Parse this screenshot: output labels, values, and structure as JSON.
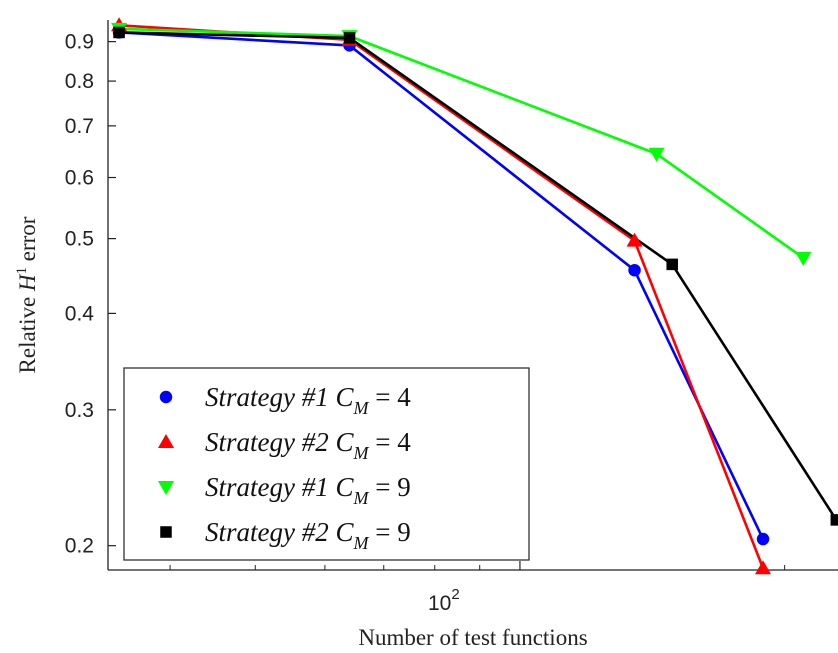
{
  "chart_data": {
    "type": "line",
    "title": "",
    "xlabel": "Number of test functions",
    "ylabel_prefix": "Relative ",
    "ylabel_var": "H",
    "ylabel_sup": "1",
    "ylabel_suffix": " error",
    "xscale": "log",
    "yscale": "log",
    "xlim": [
      34,
      230
    ],
    "ylim": [
      0.186,
      0.96
    ],
    "x_tick_base": "10",
    "x_tick_exp": "2",
    "x_tick_value": 100,
    "y_ticks": [
      0.2,
      0.3,
      0.4,
      0.5,
      0.6,
      0.7,
      0.8,
      0.9
    ],
    "y_tick_labels": [
      "0.2",
      "0.3",
      "0.4",
      "0.5",
      "0.6",
      "0.7",
      "0.8",
      "0.9"
    ],
    "grid": false,
    "legend_position": "bottom-left",
    "series": [
      {
        "name_main": "Strategy #1",
        "name_var": "C",
        "name_sub": "M",
        "name_eq": " = 4",
        "color": "#0000ff",
        "marker": "circle",
        "x": [
          35,
          64,
          135,
          189
        ],
        "y": [
          0.925,
          0.89,
          0.455,
          0.204
        ]
      },
      {
        "name_main": "Strategy #2",
        "name_var": "C",
        "name_sub": "M",
        "name_eq": " = 4",
        "color": "#ff0000",
        "marker": "triangle-up",
        "x": [
          35,
          64,
          135,
          189
        ],
        "y": [
          0.945,
          0.905,
          0.497,
          0.187
        ]
      },
      {
        "name_main": "Strategy #1",
        "name_var": "C",
        "name_sub": "M",
        "name_eq": " = 9",
        "color": "#00ff00",
        "marker": "triangle-down",
        "x": [
          35,
          64,
          143,
          210
        ],
        "y": [
          0.935,
          0.915,
          0.644,
          0.472
        ]
      },
      {
        "name_main": "Strategy #2",
        "name_var": "C",
        "name_sub": "M",
        "name_eq": " = 9",
        "color": "#000000",
        "marker": "square",
        "x": [
          35,
          64,
          149,
          229
        ],
        "y": [
          0.925,
          0.91,
          0.463,
          0.216
        ]
      }
    ]
  }
}
